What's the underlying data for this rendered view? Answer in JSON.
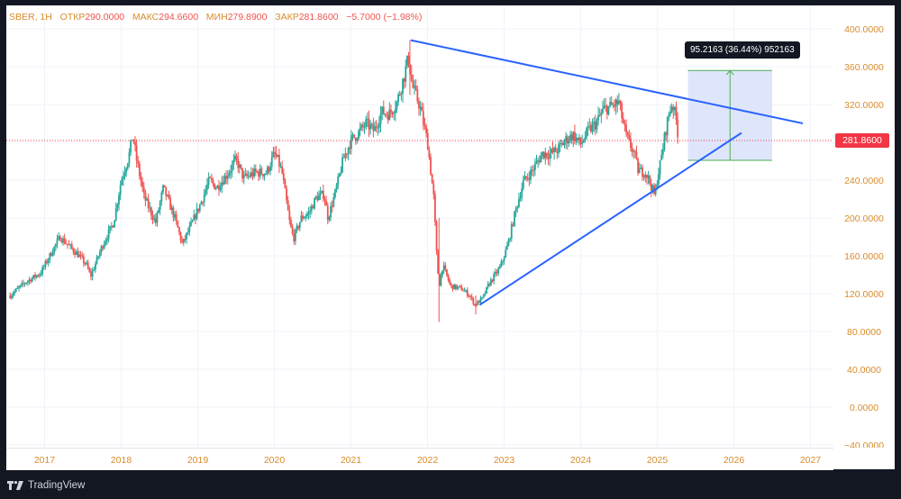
{
  "legend": {
    "symbol": "SBER, 1H",
    "open_label": "ОТКР",
    "open": "290.0000",
    "high_label": "МАКС",
    "high": "294.6600",
    "low_label": "МИН",
    "low": "279.8900",
    "close_label": "ЗАКР",
    "close": "281.8600",
    "change": "−5.7000 (−1.98%)"
  },
  "current_price_label": "281.8600",
  "measure_label": "95.2163 (36.44%) 952163",
  "brand": "TradingView",
  "colors": {
    "up": "#26a69a",
    "down": "#ef5350",
    "trendline": "#2962ff",
    "measure_fill": "#dbe3fb",
    "measure_line": "#4caf50",
    "price_tag": "#f23645"
  },
  "chart_data": {
    "type": "candlestick",
    "y_axis": {
      "ticks": [
        "400.0000",
        "360.0000",
        "320.0000",
        "280.0000",
        "240.0000",
        "200.0000",
        "160.0000",
        "120.0000",
        "80.0000",
        "40.0000",
        "0.0000",
        "−40.0000"
      ],
      "range": [
        -40,
        400
      ]
    },
    "x_axis": {
      "ticks": [
        "2017",
        "2018",
        "2019",
        "2020",
        "2021",
        "2022",
        "2023",
        "2024",
        "2025",
        "2026",
        "2027"
      ],
      "range": [
        2016.5,
        2027.3
      ]
    },
    "price_path": [
      [
        2016.55,
        118
      ],
      [
        2016.75,
        132
      ],
      [
        2016.95,
        142
      ],
      [
        2017.1,
        165
      ],
      [
        2017.2,
        180
      ],
      [
        2017.3,
        172
      ],
      [
        2017.45,
        160
      ],
      [
        2017.55,
        150
      ],
      [
        2017.6,
        138
      ],
      [
        2017.75,
        170
      ],
      [
        2017.9,
        195
      ],
      [
        2018.0,
        240
      ],
      [
        2018.1,
        265
      ],
      [
        2018.15,
        288
      ],
      [
        2018.2,
        262
      ],
      [
        2018.3,
        222
      ],
      [
        2018.45,
        195
      ],
      [
        2018.55,
        232
      ],
      [
        2018.7,
        200
      ],
      [
        2018.8,
        172
      ],
      [
        2018.9,
        190
      ],
      [
        2019.05,
        218
      ],
      [
        2019.15,
        240
      ],
      [
        2019.25,
        232
      ],
      [
        2019.4,
        248
      ],
      [
        2019.5,
        262
      ],
      [
        2019.6,
        242
      ],
      [
        2019.75,
        248
      ],
      [
        2019.9,
        248
      ],
      [
        2020.0,
        268
      ],
      [
        2020.05,
        260
      ],
      [
        2020.1,
        248
      ],
      [
        2020.2,
        195
      ],
      [
        2020.25,
        178
      ],
      [
        2020.35,
        200
      ],
      [
        2020.45,
        205
      ],
      [
        2020.55,
        222
      ],
      [
        2020.65,
        225
      ],
      [
        2020.7,
        200
      ],
      [
        2020.8,
        228
      ],
      [
        2020.9,
        262
      ],
      [
        2021.0,
        282
      ],
      [
        2021.1,
        290
      ],
      [
        2021.2,
        300
      ],
      [
        2021.3,
        292
      ],
      [
        2021.4,
        312
      ],
      [
        2021.5,
        310
      ],
      [
        2021.6,
        322
      ],
      [
        2021.7,
        352
      ],
      [
        2021.75,
        370
      ],
      [
        2021.8,
        340
      ],
      [
        2021.9,
        318
      ],
      [
        2022.0,
        280
      ],
      [
        2022.08,
        222
      ],
      [
        2022.12,
        160
      ],
      [
        2022.15,
        128
      ],
      [
        2022.2,
        150
      ],
      [
        2022.3,
        128
      ],
      [
        2022.45,
        125
      ],
      [
        2022.55,
        118
      ],
      [
        2022.62,
        108
      ],
      [
        2022.72,
        115
      ],
      [
        2022.8,
        130
      ],
      [
        2022.95,
        148
      ],
      [
        2023.05,
        172
      ],
      [
        2023.15,
        208
      ],
      [
        2023.25,
        238
      ],
      [
        2023.35,
        248
      ],
      [
        2023.5,
        268
      ],
      [
        2023.6,
        268
      ],
      [
        2023.7,
        272
      ],
      [
        2023.8,
        282
      ],
      [
        2023.9,
        288
      ],
      [
        2024.0,
        278
      ],
      [
        2024.1,
        292
      ],
      [
        2024.2,
        300
      ],
      [
        2024.3,
        315
      ],
      [
        2024.4,
        318
      ],
      [
        2024.5,
        322
      ],
      [
        2024.55,
        302
      ],
      [
        2024.6,
        285
      ],
      [
        2024.7,
        268
      ],
      [
        2024.75,
        250
      ],
      [
        2024.85,
        248
      ],
      [
        2024.93,
        232
      ],
      [
        2024.97,
        222
      ],
      [
        2025.0,
        242
      ],
      [
        2025.05,
        262
      ],
      [
        2025.1,
        288
      ],
      [
        2025.15,
        310
      ],
      [
        2025.2,
        322
      ],
      [
        2025.25,
        302
      ],
      [
        2025.28,
        282
      ]
    ],
    "trendlines": [
      {
        "from": [
          2021.78,
          388
        ],
        "to": [
          2026.9,
          300
        ]
      },
      {
        "from": [
          2022.68,
          108
        ],
        "to": [
          2026.1,
          290
        ]
      }
    ],
    "measure": {
      "x_from": 2025.4,
      "x_to": 2026.5,
      "y_from": 261,
      "y_to": 356,
      "change": 95.2163,
      "percent": 36.44
    },
    "current_price": 281.86
  }
}
